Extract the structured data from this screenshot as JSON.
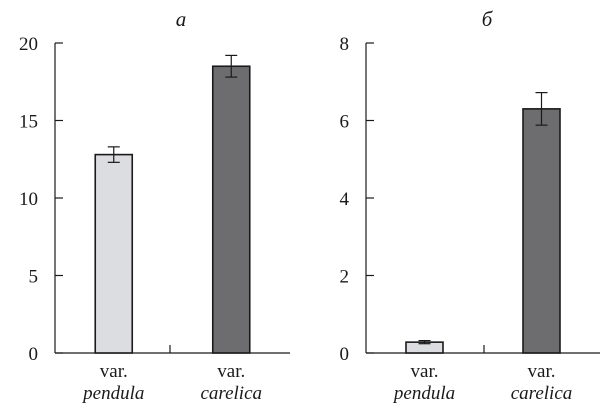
{
  "chart_data": [
    {
      "type": "bar",
      "title": "а",
      "categories": [
        {
          "line1": "var.",
          "line2": "pendula"
        },
        {
          "line1": "var.",
          "line2": "carelica"
        }
      ],
      "values": [
        12.8,
        18.5
      ],
      "errors": [
        0.5,
        0.7
      ],
      "colors": [
        "#dcdde0",
        "#6d6d70"
      ],
      "ylim": [
        0,
        20
      ],
      "yticks": [
        0,
        5,
        10,
        15,
        20
      ],
      "ytick_labels": [
        "0",
        "5",
        "10",
        "15",
        "20"
      ],
      "xlabel": "",
      "ylabel": "",
      "grid": false
    },
    {
      "type": "bar",
      "title": "б",
      "categories": [
        {
          "line1": "var.",
          "line2": "pendula"
        },
        {
          "line1": "var.",
          "line2": "carelica"
        }
      ],
      "values": [
        0.28,
        6.3
      ],
      "errors": [
        0.04,
        0.42
      ],
      "colors": [
        "#dcdde0",
        "#6d6d70"
      ],
      "ylim": [
        0,
        8
      ],
      "yticks": [
        0,
        2,
        4,
        6,
        8
      ],
      "ytick_labels": [
        "0",
        "2",
        "4",
        "6",
        "8"
      ],
      "xlabel": "",
      "ylabel": "",
      "grid": false
    }
  ]
}
